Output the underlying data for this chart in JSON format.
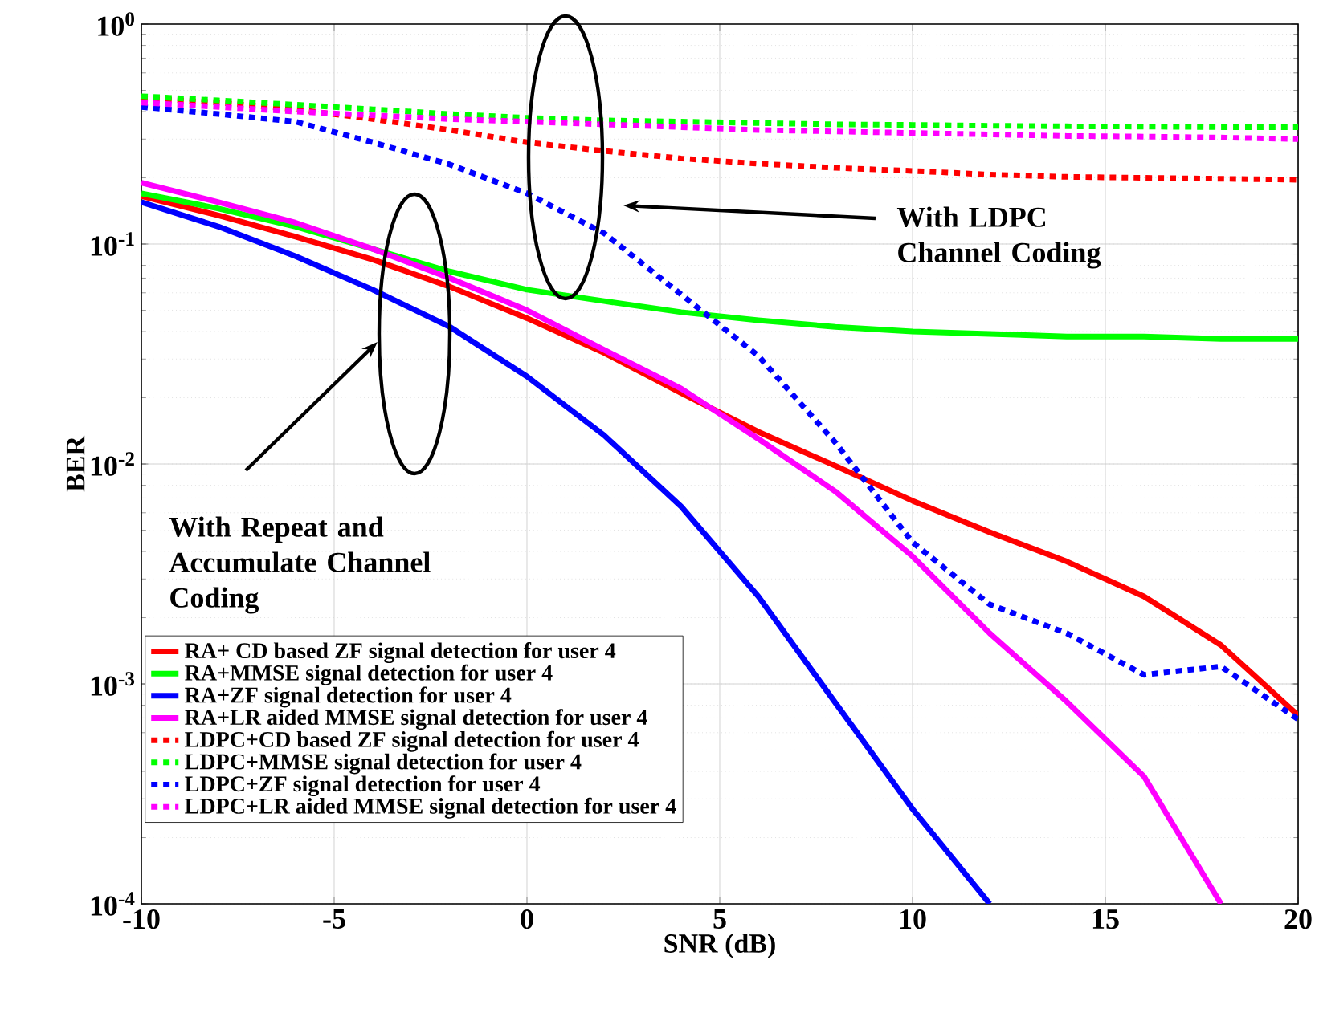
{
  "chart_data": {
    "type": "line",
    "xlabel": "SNR (dB)",
    "ylabel": "BER",
    "log": "y",
    "grid": true,
    "legend": "bottom left",
    "xlim": [
      -10,
      20
    ],
    "xticks": [
      -10,
      -5,
      0,
      5,
      10,
      15,
      20
    ],
    "ylim": [
      0.0001,
      1
    ],
    "yticks": [
      {
        "value": 0.0001,
        "label": "10$^{-4}$"
      },
      {
        "value": 0.001,
        "label": "10$^{-3}$"
      },
      {
        "value": 0.01,
        "label": "10$^{-2}$"
      },
      {
        "value": 0.1,
        "label": "10$^{-1}$"
      },
      {
        "value": 1,
        "label": "10$^{0}$"
      }
    ],
    "x": [
      -10,
      -8,
      -6,
      -4,
      -2,
      0,
      2,
      4,
      6,
      8,
      10,
      12,
      14,
      16,
      18,
      20
    ],
    "series": [
      {
        "name": "RA+ CD based  ZF signal detection for user 4",
        "color": "#ff0000",
        "line_style": "solid",
        "values": [
          0.165,
          0.135,
          0.108,
          0.085,
          0.064,
          0.046,
          0.032,
          0.021,
          0.014,
          0.0098,
          0.0068,
          0.0049,
          0.0036,
          0.0025,
          0.0015,
          0.00072
        ]
      },
      {
        "name": "RA+MMSE signal detection for user 4",
        "color": "#00ff00",
        "line_style": "solid",
        "values": [
          0.17,
          0.145,
          0.12,
          0.095,
          0.075,
          0.062,
          0.055,
          0.049,
          0.045,
          0.042,
          0.04,
          0.039,
          0.038,
          0.038,
          0.037,
          0.037
        ]
      },
      {
        "name": "RA+ZF signal detection for user 4",
        "color": "#0000ff",
        "line_style": "solid",
        "values": [
          0.155,
          0.12,
          0.088,
          0.062,
          0.042,
          0.025,
          0.0135,
          0.0064,
          0.0025,
          0.00082,
          0.00027,
          0.0001,
          null,
          null,
          null,
          null
        ]
      },
      {
        "name": "RA+LR aided MMSE  signal detection for user 4",
        "color": "#ff00ff",
        "line_style": "solid",
        "values": [
          0.19,
          0.155,
          0.125,
          0.095,
          0.07,
          0.05,
          0.033,
          0.022,
          0.013,
          0.0075,
          0.0038,
          0.0017,
          0.00083,
          0.00038,
          0.0001,
          null
        ]
      },
      {
        "name": "LDPC+CD based  ZF  signal detection for user 4",
        "color": "#ff0000",
        "line_style": "dotted",
        "values": [
          0.46,
          0.44,
          0.41,
          0.37,
          0.33,
          0.29,
          0.265,
          0.245,
          0.232,
          0.222,
          0.215,
          0.207,
          0.202,
          0.2,
          0.198,
          0.196
        ]
      },
      {
        "name": "LDPC+MMSE  signal detection for user 4",
        "color": "#00ff00",
        "line_style": "dotted",
        "values": [
          0.47,
          0.45,
          0.43,
          0.41,
          0.39,
          0.375,
          0.365,
          0.36,
          0.355,
          0.35,
          0.348,
          0.345,
          0.343,
          0.342,
          0.34,
          0.34
        ]
      },
      {
        "name": "LDPC+ZF  signal detection for user 4",
        "color": "#0000ff",
        "line_style": "dotted",
        "values": [
          0.42,
          0.39,
          0.36,
          0.29,
          0.23,
          0.17,
          0.112,
          0.059,
          0.031,
          0.0125,
          0.0044,
          0.0023,
          0.0017,
          0.0011,
          0.0012,
          0.00069
        ]
      },
      {
        "name": "LDPC+LR aided MMSE signal detection  for user 4",
        "color": "#ff00ff",
        "line_style": "dotted",
        "values": [
          0.44,
          0.42,
          0.4,
          0.385,
          0.37,
          0.36,
          0.35,
          0.34,
          0.33,
          0.325,
          0.32,
          0.315,
          0.31,
          0.308,
          0.305,
          0.3
        ]
      }
    ],
    "annotations": [
      "With LDPC Channel Coding",
      "With Repeat and Accumulate Channel Coding"
    ]
  }
}
